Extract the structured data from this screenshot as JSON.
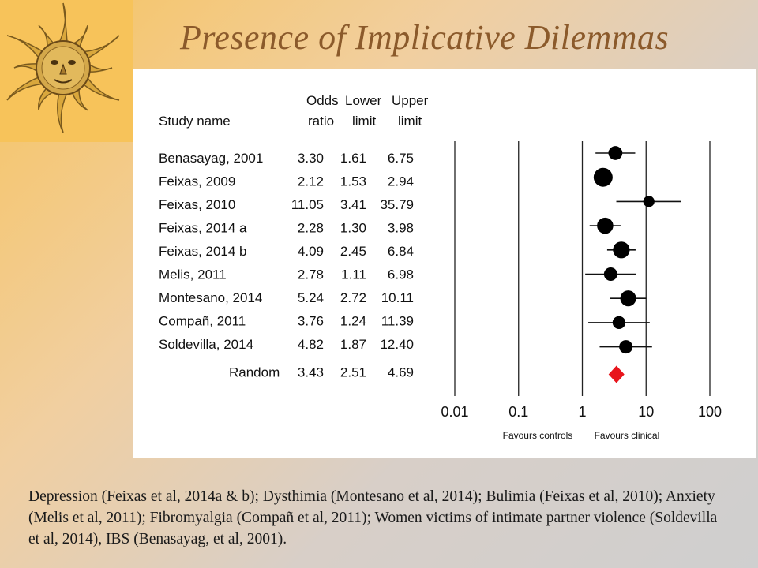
{
  "title": "Presence of Implicative Dilemmas",
  "caption": "Depression (Feixas et al, 2014a & b); Dysthimia (Montesano et al, 2014); Bulimia (Feixas et al, 2010); Anxiety (Melis et al, 2011); Fibromyalgia (Compañ et al, 2011); Women victims of intimate partner violence (Soldevilla et al, 2014), IBS (Benasayag, et al, 2001).",
  "logo": {
    "icon": "sun-face-icon"
  },
  "chart_data": {
    "type": "forest",
    "headers": {
      "study": "Study name",
      "or_top": "Odds",
      "or_bottom": "ratio",
      "lower_top": "Lower",
      "lower_bottom": "limit",
      "upper_top": "Upper",
      "upper_bottom": "limit"
    },
    "studies": [
      {
        "name": "Benasayag, 2001",
        "or": "3.30",
        "lower": "1.61",
        "upper": "6.75",
        "weight": 0.55
      },
      {
        "name": "Feixas, 2009",
        "or": "2.12",
        "lower": "1.53",
        "upper": "2.94",
        "weight": 1.0
      },
      {
        "name": "Feixas, 2010",
        "or": "11.05",
        "lower": "3.41",
        "upper": "35.79",
        "weight": 0.3
      },
      {
        "name": "Feixas, 2014 a",
        "or": "2.28",
        "lower": "1.30",
        "upper": "3.98",
        "weight": 0.75
      },
      {
        "name": "Feixas, 2014 b",
        "or": "4.09",
        "lower": "2.45",
        "upper": "6.84",
        "weight": 0.8
      },
      {
        "name": "Melis, 2011",
        "or": "2.78",
        "lower": "1.11",
        "upper": "6.98",
        "weight": 0.5
      },
      {
        "name": "Montesano, 2014",
        "or": "5.24",
        "lower": "2.72",
        "upper": "10.11",
        "weight": 0.72
      },
      {
        "name": "Compañ, 2011",
        "or": "3.76",
        "lower": "1.24",
        "upper": "11.39",
        "weight": 0.45
      },
      {
        "name": "Soldevilla, 2014",
        "or": "4.82",
        "lower": "1.87",
        "upper": "12.40",
        "weight": 0.5
      }
    ],
    "summary": {
      "name": "Random",
      "or": "3.43",
      "lower": "2.51",
      "upper": "4.69",
      "color": "#e8141b"
    },
    "x_scale": "log",
    "x_ticks": [
      "0.01",
      "0.1",
      "1",
      "10",
      "100"
    ],
    "x_tick_values": [
      0.01,
      0.1,
      1,
      10,
      100
    ],
    "xlim": [
      0.01,
      100
    ],
    "favours_left": "Favours controls",
    "favours_right": "Favours clinical"
  }
}
